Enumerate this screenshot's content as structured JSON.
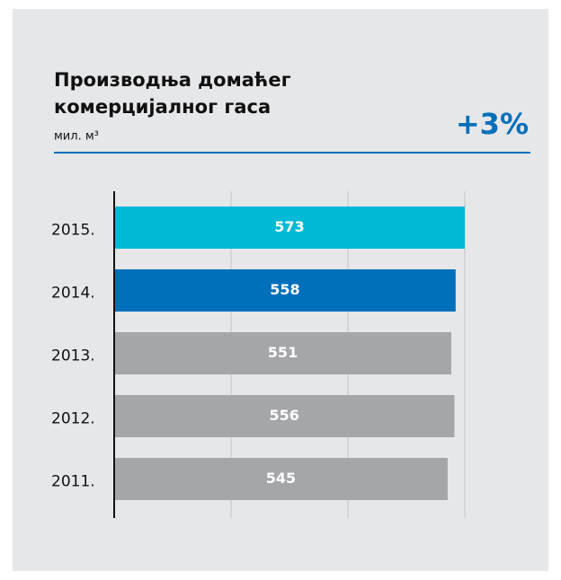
{
  "chart_data": {
    "type": "hbar",
    "title": [
      "Производња домаћег",
      "комерцијалног гаса"
    ],
    "subtitle": "мил. м³",
    "annotation": "+3%",
    "categories": [
      "2015.",
      "2014.",
      "2013.",
      "2012.",
      "2011."
    ],
    "values": [
      573,
      558,
      551,
      556,
      545
    ],
    "colors": [
      "#00b9d6",
      "#0070bb",
      "#a5a6a9",
      "#a5a6a9",
      "#a5a6a9"
    ],
    "xlim": [
      0,
      573
    ],
    "xticks": [
      0,
      191,
      382,
      573
    ],
    "grid": true
  }
}
